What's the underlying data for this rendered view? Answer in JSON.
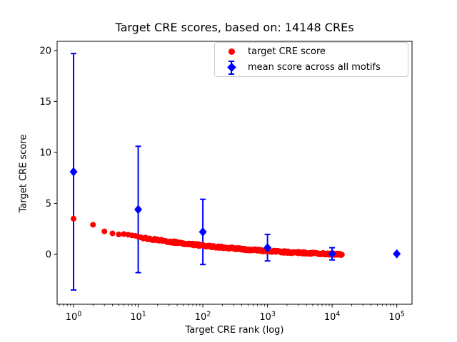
{
  "title": "Target CRE scores, based on: 14148 CREs",
  "axes": {
    "xlabel": "Target CRE rank (log)",
    "ylabel": "Target CRE score",
    "xscale": "log",
    "x_tick_base": "10",
    "x_tick_exponents": [
      0,
      1,
      2,
      3,
      4,
      5
    ],
    "y_tick_values": [
      0,
      5,
      10,
      15,
      20
    ],
    "y_tick_labels": [
      "0",
      "5",
      "10",
      "15",
      "20"
    ]
  },
  "legend": {
    "items": [
      {
        "label": "target CRE score",
        "marker": "circle-icon",
        "color": "#ff0000"
      },
      {
        "label": "mean score across all motifs",
        "marker": "diamond-errorbar-icon",
        "color": "#0000ff"
      }
    ]
  },
  "colors": {
    "red": "#ff0000",
    "blue": "#0000ff",
    "axis": "#000000",
    "background": "#ffffff",
    "legend_border": "#cccccc"
  },
  "chart_data": {
    "type": "scatter",
    "title": "Target CRE scores, based on: 14148 CREs",
    "xlabel": "Target CRE rank (log)",
    "ylabel": "Target CRE score",
    "xscale": "log",
    "xlim": [
      0.557,
      172000
    ],
    "ylim": [
      -4.9,
      20.9
    ],
    "grid": false,
    "legend_position": "upper right inside",
    "n_cres": 14148,
    "series": [
      {
        "name": "target CRE score",
        "type": "scatter",
        "marker": "circle",
        "color": "#ff0000",
        "rank_range": [
          1,
          14148
        ],
        "anchor_points": {
          "ranks": [
            1,
            2,
            3,
            4,
            5,
            6,
            8,
            10,
            15,
            20,
            30,
            50,
            70,
            100,
            150,
            200,
            300,
            500,
            700,
            1000,
            1500,
            2000,
            3000,
            5000,
            7000,
            10000,
            14148
          ],
          "scores": [
            3.5,
            2.9,
            2.25,
            2.05,
            1.95,
            1.9,
            1.8,
            1.68,
            1.5,
            1.42,
            1.25,
            1.08,
            0.98,
            0.85,
            0.75,
            0.68,
            0.58,
            0.46,
            0.4,
            0.32,
            0.26,
            0.22,
            0.16,
            0.1,
            0.06,
            0.02,
            0.0
          ]
        }
      },
      {
        "name": "mean score across all motifs",
        "type": "errorbar",
        "marker": "diamond",
        "color": "#0000ff",
        "x": [
          1,
          10,
          100,
          1000,
          10000,
          100000
        ],
        "y": [
          8.1,
          4.4,
          2.2,
          0.65,
          0.05,
          0.05
        ],
        "yerr": [
          11.6,
          6.2,
          3.2,
          1.3,
          0.6,
          0
        ]
      }
    ]
  }
}
